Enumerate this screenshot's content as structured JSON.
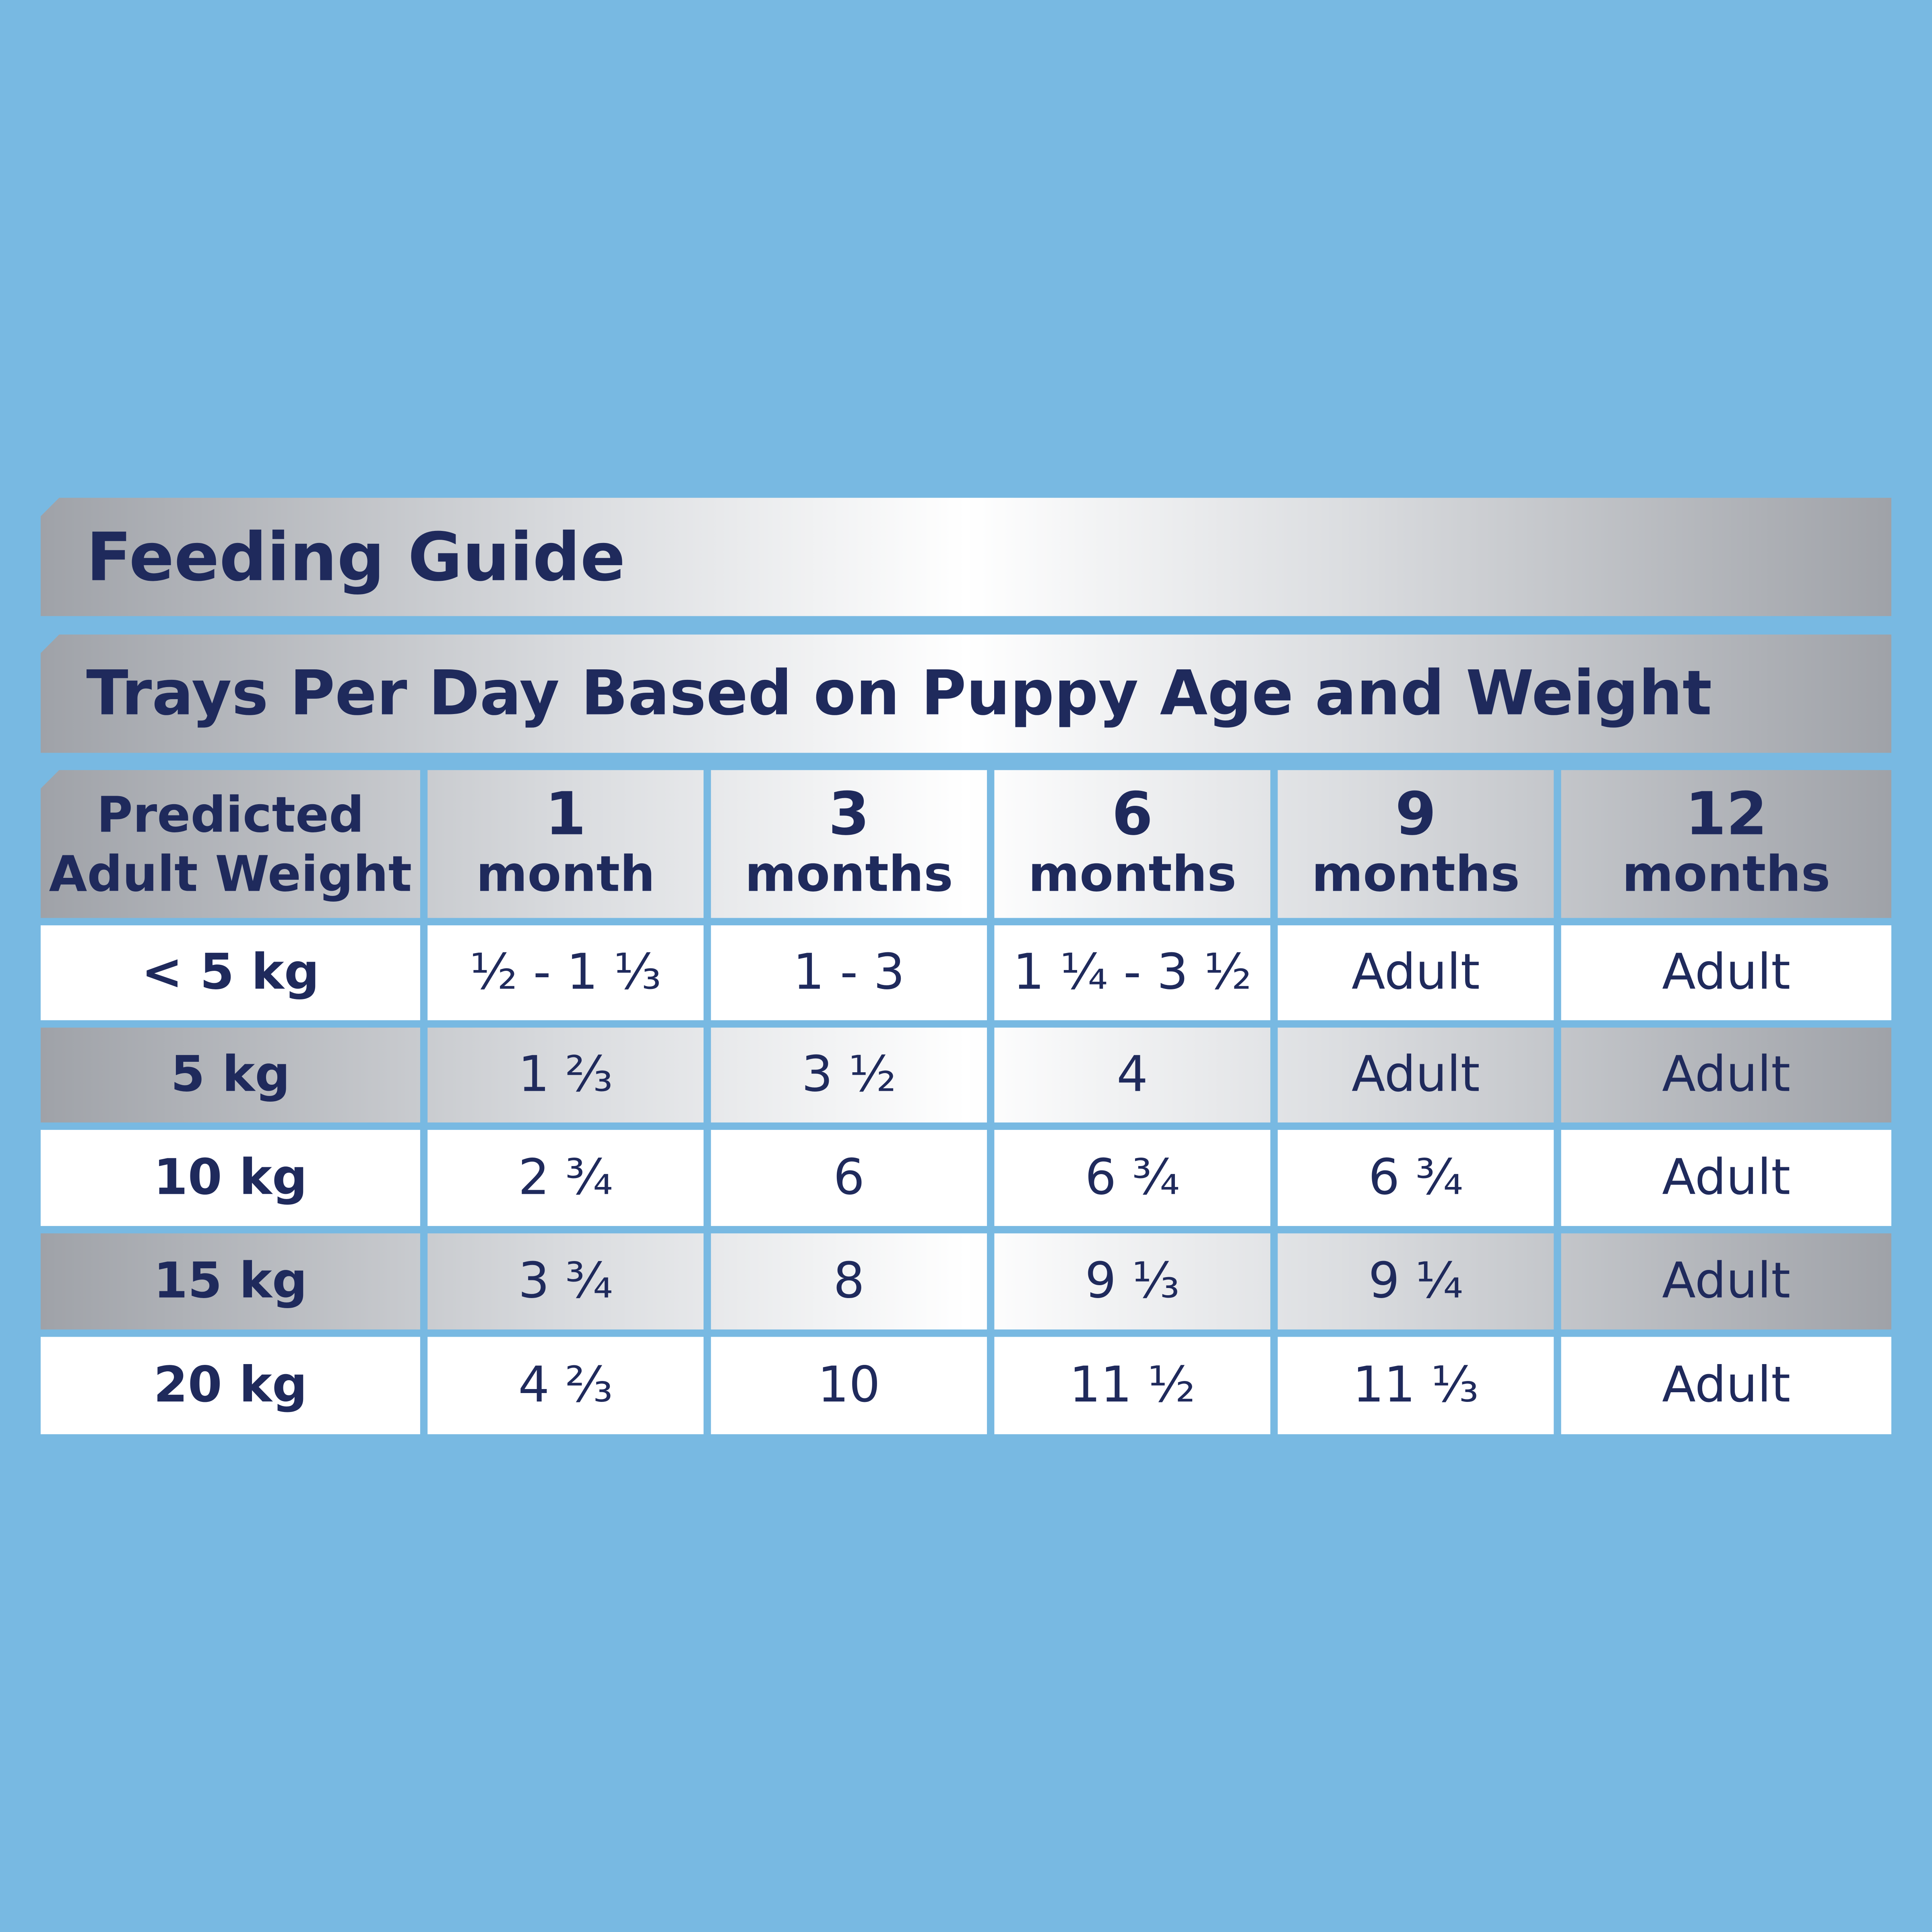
{
  "header": {
    "title": "Feeding Guide",
    "subtitle": "Trays Per Day Based on Puppy Age and Weight"
  },
  "table": {
    "columns": [
      [
        "Predicted",
        "Adult Weight"
      ],
      [
        "1",
        "month"
      ],
      [
        "3",
        "months"
      ],
      [
        "6",
        "months"
      ],
      [
        "9",
        "months"
      ],
      [
        "12",
        "months"
      ]
    ],
    "rows": [
      [
        "< 5 kg",
        "½ - 1 ⅓",
        "1 - 3",
        "1 ¼ - 3 ½",
        "Adult",
        "Adult"
      ],
      [
        "5 kg",
        "1 ⅔",
        "3 ½",
        "4",
        "Adult",
        "Adult"
      ],
      [
        "10 kg",
        "2 ¾",
        "6",
        "6 ¾",
        "6 ¾",
        "Adult"
      ],
      [
        "15 kg",
        "3 ¾",
        "8",
        "9 ⅓",
        "9 ¼",
        "Adult"
      ],
      [
        "20 kg",
        "4 ⅔",
        "10",
        "11 ½",
        "11 ⅓",
        "Adult"
      ]
    ]
  }
}
